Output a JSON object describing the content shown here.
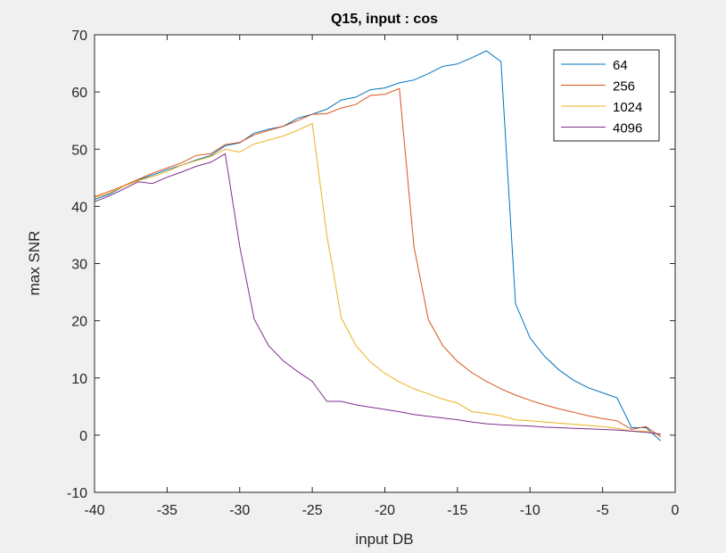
{
  "chart_data": {
    "type": "line",
    "title": "Q15, input : cos",
    "xlabel": "input DB",
    "ylabel": "max SNR",
    "xlim": [
      -40,
      0
    ],
    "ylim": [
      -10,
      70
    ],
    "xticks": [
      -40,
      -35,
      -30,
      -25,
      -20,
      -15,
      -10,
      -5,
      0
    ],
    "yticks": [
      -10,
      0,
      10,
      20,
      30,
      40,
      50,
      60,
      70
    ],
    "xtick_labels": [
      "-40",
      "-35",
      "-30",
      "-25",
      "-20",
      "-15",
      "-10",
      "-5",
      "0"
    ],
    "ytick_labels": [
      "-10",
      "0",
      "10",
      "20",
      "30",
      "40",
      "50",
      "60",
      "70"
    ],
    "grid": false,
    "legend_position": "top-right",
    "series": [
      {
        "name": "64",
        "color": "#0072BD",
        "x": [
          -40,
          -39,
          -38,
          -37,
          -36,
          -35,
          -34,
          -33,
          -32,
          -31,
          -30,
          -29,
          -28,
          -27,
          -26,
          -25,
          -24,
          -23,
          -22,
          -21,
          -20,
          -19,
          -18,
          -17,
          -16,
          -15,
          -14,
          -13,
          -12,
          -11,
          -10,
          -9,
          -8,
          -7,
          -6,
          -5,
          -4,
          -3,
          -2,
          -1
        ],
        "y": [
          41.2,
          42.1,
          43.5,
          44.6,
          45.5,
          46.4,
          47.2,
          48.1,
          48.9,
          50.6,
          51.1,
          52.8,
          53.5,
          54.0,
          55.4,
          56.1,
          57.0,
          58.6,
          59.1,
          60.4,
          60.7,
          61.6,
          62.1,
          63.2,
          64.5,
          64.9,
          66.0,
          67.2,
          65.3,
          23.0,
          17.0,
          13.8,
          11.4,
          9.6,
          8.3,
          7.4,
          6.5,
          1.3,
          1.3,
          -1.0
        ]
      },
      {
        "name": "256",
        "color": "#D95319",
        "x": [
          -40,
          -39,
          -38,
          -37,
          -36,
          -35,
          -34,
          -33,
          -32,
          -31,
          -30,
          -29,
          -28,
          -27,
          -26,
          -25,
          -24,
          -23,
          -22,
          -21,
          -20,
          -19,
          -18,
          -17,
          -16,
          -15,
          -14,
          -13,
          -12,
          -11,
          -10,
          -9,
          -8,
          -7,
          -6,
          -5,
          -4,
          -3,
          -2,
          -1
        ],
        "y": [
          41.7,
          42.6,
          43.6,
          44.7,
          45.8,
          46.7,
          47.6,
          48.9,
          49.2,
          50.8,
          51.2,
          52.5,
          53.3,
          54.0,
          55.0,
          56.1,
          56.2,
          57.2,
          57.8,
          59.4,
          59.6,
          60.6,
          33.0,
          20.2,
          15.6,
          12.9,
          10.9,
          9.4,
          8.1,
          7.0,
          6.1,
          5.3,
          4.6,
          4.0,
          3.4,
          2.9,
          2.5,
          1.0,
          1.5,
          -0.3
        ]
      },
      {
        "name": "1024",
        "color": "#EDB120",
        "x": [
          -40,
          -39,
          -38,
          -37,
          -36,
          -35,
          -34,
          -33,
          -32,
          -31,
          -30,
          -29,
          -28,
          -27,
          -26,
          -25,
          -24,
          -23,
          -22,
          -21,
          -20,
          -19,
          -18,
          -17,
          -16,
          -15,
          -14,
          -13,
          -12,
          -11,
          -10,
          -9,
          -8,
          -7,
          -6,
          -5,
          -4,
          -3,
          -2,
          -1
        ],
        "y": [
          41.5,
          42.3,
          43.5,
          44.5,
          45.2,
          46.1,
          47.2,
          48.0,
          48.7,
          50.0,
          49.5,
          50.9,
          51.6,
          52.3,
          53.3,
          54.5,
          35.0,
          20.5,
          15.7,
          12.8,
          10.8,
          9.3,
          8.1,
          7.2,
          6.3,
          5.6,
          4.1,
          3.8,
          3.4,
          2.7,
          2.5,
          2.3,
          2.1,
          1.9,
          1.7,
          1.5,
          1.2,
          0.7,
          0.7,
          0.0
        ]
      },
      {
        "name": "4096",
        "color": "#7E2F8E",
        "x": [
          -40,
          -39,
          -38,
          -37,
          -36,
          -35,
          -34,
          -33,
          -32,
          -31,
          -30,
          -29,
          -28,
          -27,
          -26,
          -25,
          -24,
          -23,
          -22,
          -21,
          -20,
          -19,
          -18,
          -17,
          -16,
          -15,
          -14,
          -13,
          -12,
          -11,
          -10,
          -9,
          -8,
          -7,
          -6,
          -5,
          -4,
          -3,
          -2,
          -1
        ],
        "y": [
          40.8,
          41.8,
          43.0,
          44.3,
          44.0,
          45.1,
          46.0,
          47.0,
          47.7,
          49.2,
          33.0,
          20.3,
          15.6,
          13.0,
          11.1,
          9.4,
          5.9,
          5.9,
          5.3,
          4.9,
          4.5,
          4.1,
          3.6,
          3.3,
          3.0,
          2.7,
          2.3,
          2.0,
          1.8,
          1.7,
          1.6,
          1.4,
          1.3,
          1.2,
          1.1,
          1.0,
          0.9,
          0.7,
          0.5,
          0.2
        ]
      }
    ]
  }
}
